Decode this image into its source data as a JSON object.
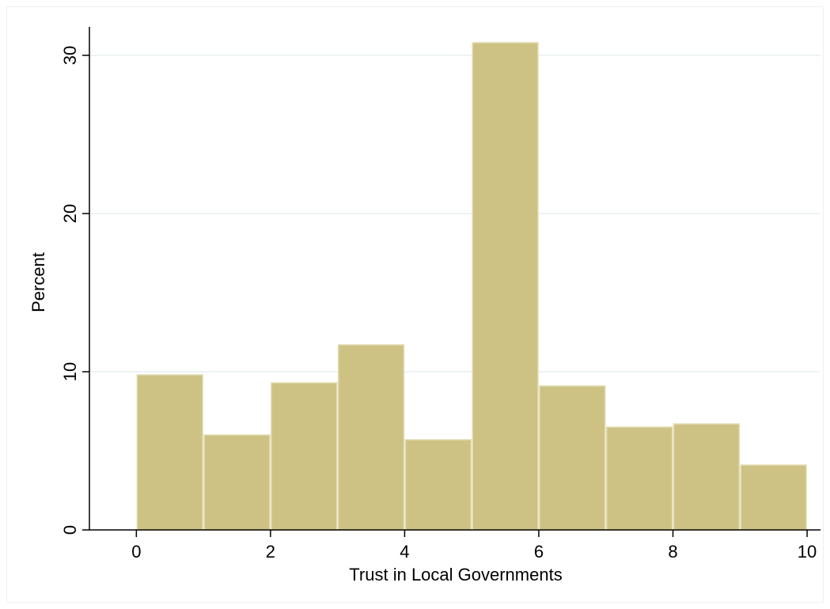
{
  "chart_data": {
    "type": "bar",
    "title": "",
    "xlabel": "Trust in Local Governments",
    "ylabel": "Percent",
    "xlim": [
      -0.7,
      10.2
    ],
    "ylim": [
      0,
      31.8
    ],
    "xticks": [
      0,
      2,
      4,
      6,
      8,
      10
    ],
    "yticks": [
      0,
      10,
      20,
      30
    ],
    "xtick_labels": [
      "0",
      "2",
      "4",
      "6",
      "8",
      "10"
    ],
    "ytick_labels": [
      "0",
      "10",
      "20",
      "30"
    ],
    "grid": true,
    "legend": "none",
    "bins": [
      {
        "x0": 0,
        "x1": 1,
        "value": 9.8
      },
      {
        "x0": 1,
        "x1": 2,
        "value": 6.0
      },
      {
        "x0": 2,
        "x1": 3,
        "value": 9.3
      },
      {
        "x0": 3,
        "x1": 4,
        "value": 11.7
      },
      {
        "x0": 4,
        "x1": 5,
        "value": 5.7
      },
      {
        "x0": 5,
        "x1": 6,
        "value": 30.8
      },
      {
        "x0": 6,
        "x1": 7,
        "value": 9.1
      },
      {
        "x0": 7,
        "x1": 8,
        "value": 6.5
      },
      {
        "x0": 8,
        "x1": 9,
        "value": 6.7
      },
      {
        "x0": 9,
        "x1": 10,
        "value": 4.1
      }
    ],
    "colors": {
      "bar_fill": "#cdc284",
      "bar_edge": "#e2dbb0",
      "grid": "#e9eff1",
      "axis": "#000000"
    }
  }
}
